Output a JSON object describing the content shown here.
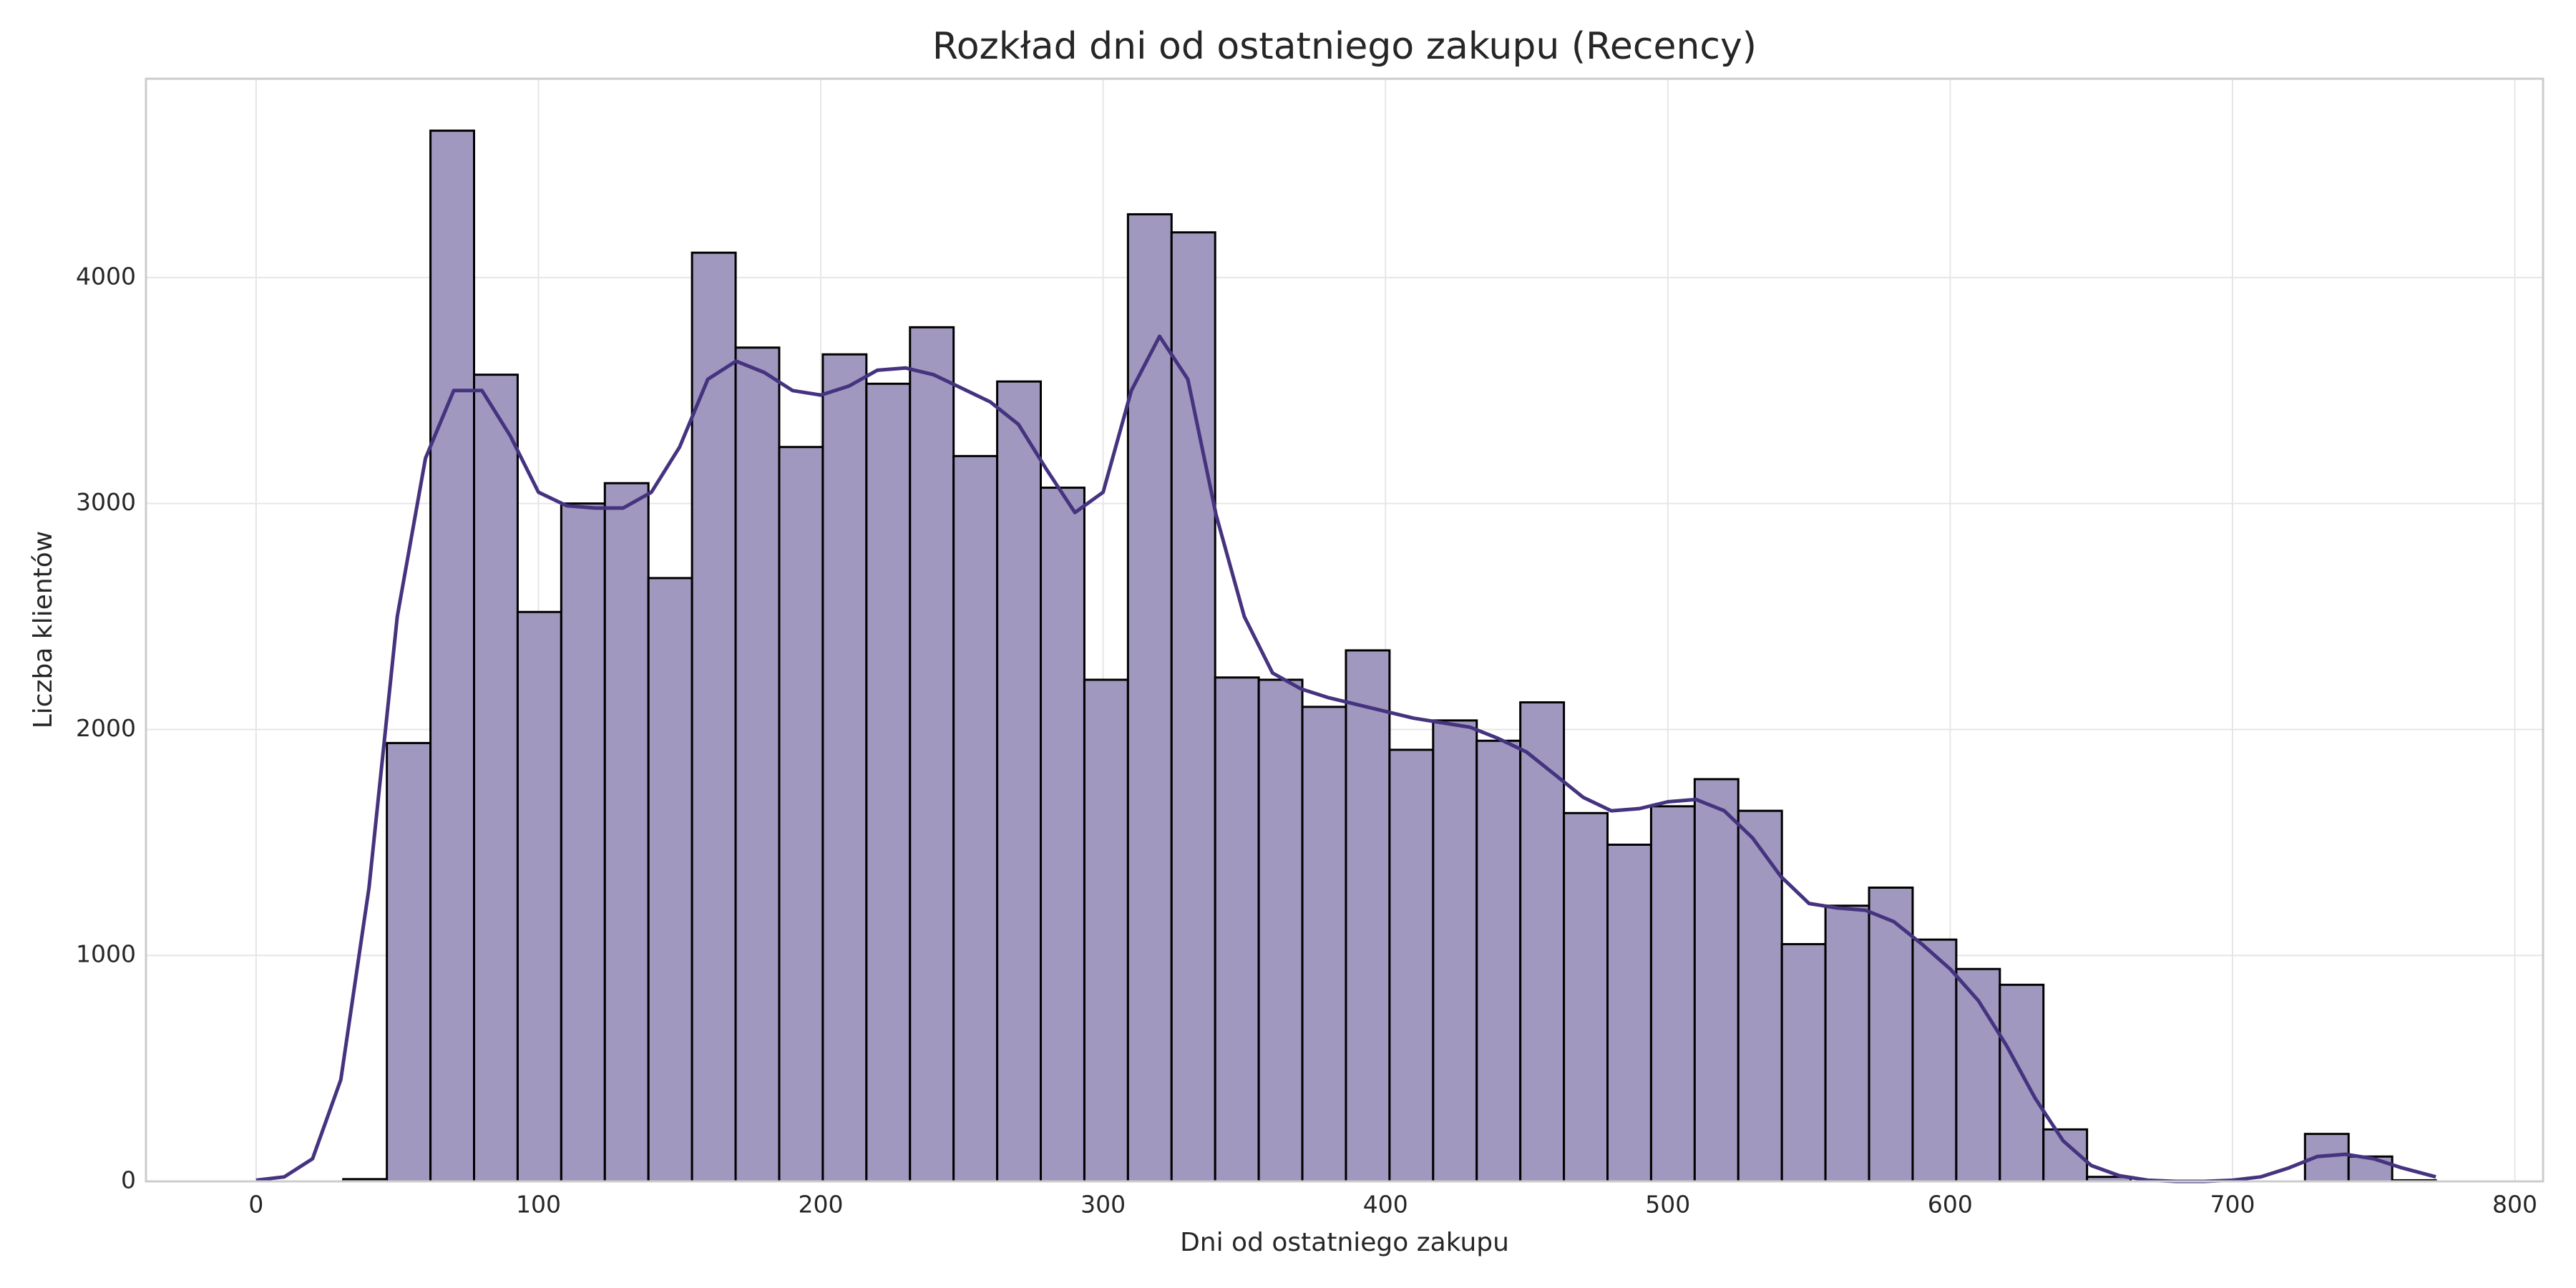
{
  "chart_data": {
    "type": "histogram",
    "title": "Rozkład dni od ostatniego zakupu (Recency)",
    "x_label": "Dni od ostatniego zakupu",
    "y_label": "Liczba klientów",
    "bins": [
      0,
      15.44,
      30.88,
      46.32,
      61.76,
      77.2,
      92.64,
      108.08,
      123.52,
      138.96,
      154.4,
      169.84,
      185.28,
      200.72,
      216.16,
      231.6,
      247.04,
      262.48,
      277.92,
      293.36,
      308.8,
      324.24,
      339.68,
      355.12,
      370.56,
      386,
      401.44,
      416.88,
      432.32,
      447.76,
      463.2,
      478.64,
      494.08,
      509.52,
      524.96,
      540.4,
      555.84,
      571.28,
      586.72,
      602.16,
      617.6,
      633.04,
      648.48,
      663.92,
      679.36,
      694.8,
      710.24,
      725.68,
      741.12,
      756.56,
      772
    ],
    "values": [
      0,
      0,
      10,
      1940,
      4650,
      3570,
      2520,
      3000,
      3090,
      2670,
      4110,
      3690,
      3250,
      3660,
      3530,
      3780,
      3210,
      3540,
      3070,
      2220,
      4280,
      4200,
      2230,
      2220,
      2100,
      2350,
      1910,
      2040,
      1950,
      2120,
      1630,
      1490,
      1660,
      1780,
      1640,
      1050,
      1220,
      1300,
      1070,
      940,
      870,
      230,
      20,
      0,
      0,
      0,
      0,
      210,
      110,
      5
    ],
    "color": "#a098be",
    "edge_color": "#000000",
    "kde": {
      "color": "#45337f",
      "x": [
        0,
        10,
        20,
        30,
        40,
        50,
        60,
        70,
        80,
        90,
        100,
        110,
        120,
        130,
        140,
        150,
        160,
        170,
        180,
        190,
        200,
        210,
        220,
        230,
        240,
        250,
        260,
        270,
        280,
        290,
        300,
        310,
        320,
        330,
        340,
        350,
        360,
        370,
        380,
        390,
        400,
        410,
        420,
        430,
        440,
        450,
        460,
        470,
        480,
        490,
        500,
        510,
        520,
        530,
        540,
        550,
        560,
        570,
        580,
        590,
        600,
        610,
        620,
        630,
        640,
        650,
        660,
        670,
        680,
        690,
        700,
        710,
        720,
        730,
        740,
        750,
        760,
        772
      ],
      "values": [
        5,
        20,
        100,
        450,
        1300,
        2500,
        3200,
        3500,
        3500,
        3300,
        3050,
        2990,
        2980,
        2980,
        3050,
        3250,
        3550,
        3630,
        3580,
        3500,
        3480,
        3520,
        3590,
        3600,
        3570,
        3510,
        3450,
        3350,
        3150,
        2960,
        3050,
        3500,
        3740,
        3550,
        2950,
        2500,
        2250,
        2180,
        2140,
        2110,
        2080,
        2050,
        2030,
        2010,
        1960,
        1900,
        1800,
        1700,
        1640,
        1650,
        1680,
        1690,
        1640,
        1520,
        1350,
        1230,
        1210,
        1200,
        1150,
        1050,
        940,
        800,
        600,
        370,
        180,
        70,
        25,
        5,
        0,
        0,
        5,
        20,
        60,
        110,
        120,
        100,
        60,
        20
      ]
    },
    "xlim": [
      -39,
      810
    ],
    "ylim": [
      0,
      4880
    ],
    "xticks": [
      0,
      100,
      200,
      300,
      400,
      500,
      600,
      700,
      800
    ],
    "yticks": [
      0,
      1000,
      2000,
      3000,
      4000
    ],
    "grid": true
  }
}
